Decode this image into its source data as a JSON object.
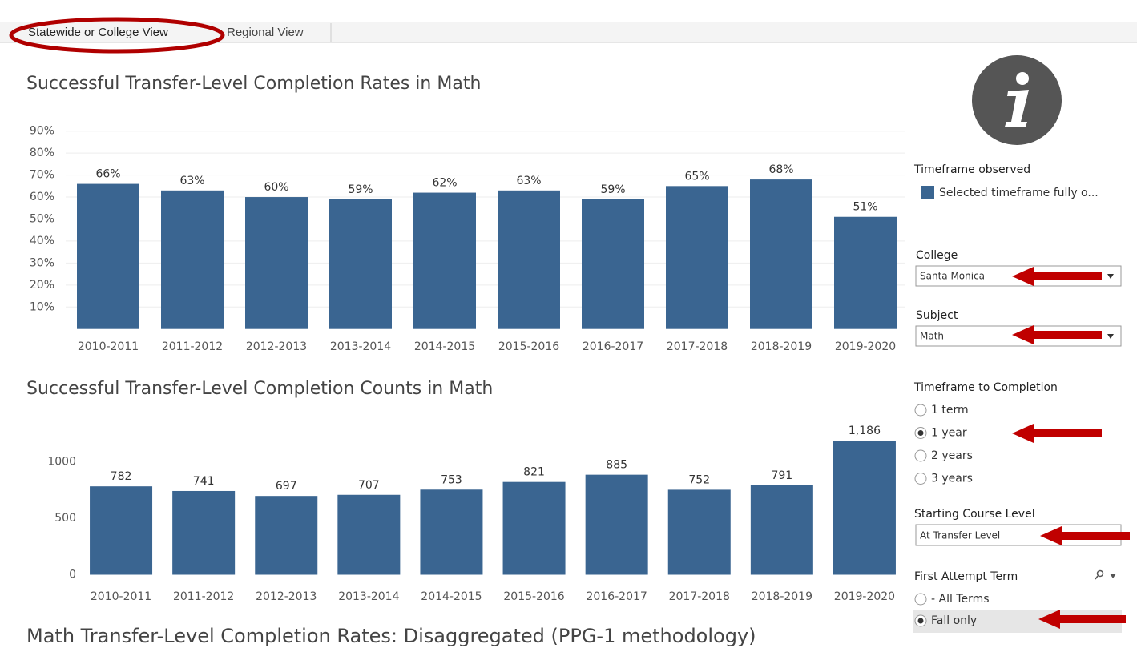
{
  "tabs": [
    "Statewide or College View",
    "Regional View"
  ],
  "chart_data": [
    {
      "type": "bar",
      "title": "Successful Transfer-Level Completion Rates in Math",
      "categories": [
        "2010-2011",
        "2011-2012",
        "2012-2013",
        "2013-2014",
        "2014-2015",
        "2015-2016",
        "2016-2017",
        "2017-2018",
        "2018-2019",
        "2019-2020"
      ],
      "values": [
        66,
        63,
        60,
        59,
        62,
        63,
        59,
        65,
        68,
        51
      ],
      "value_labels": [
        "66%",
        "63%",
        "60%",
        "59%",
        "62%",
        "63%",
        "59%",
        "65%",
        "68%",
        "51%"
      ],
      "color": "#3a6591",
      "ylim": [
        0,
        95
      ],
      "yticks": [
        {
          "value": 10,
          "label": "10%"
        },
        {
          "value": 20,
          "label": "20%"
        },
        {
          "value": 30,
          "label": "30%"
        },
        {
          "value": 40,
          "label": "40%"
        },
        {
          "value": 50,
          "label": "50%"
        },
        {
          "value": 60,
          "label": "60%"
        },
        {
          "value": 70,
          "label": "70%"
        },
        {
          "value": 80,
          "label": "80%"
        },
        {
          "value": 90,
          "label": "90%"
        }
      ],
      "grid": true
    },
    {
      "type": "bar",
      "title": "Successful Transfer-Level Completion Counts in Math",
      "categories": [
        "2010-2011",
        "2011-2012",
        "2012-2013",
        "2013-2014",
        "2014-2015",
        "2015-2016",
        "2016-2017",
        "2017-2018",
        "2018-2019",
        "2019-2020"
      ],
      "values": [
        782,
        741,
        697,
        707,
        753,
        821,
        885,
        752,
        791,
        1186
      ],
      "value_labels": [
        "782",
        "741",
        "697",
        "707",
        "753",
        "821",
        "885",
        "752",
        "791",
        "1,186"
      ],
      "color": "#3a6591",
      "ylim": [
        0,
        1400
      ],
      "yticks": [
        0,
        500,
        1000
      ],
      "grid": false
    }
  ],
  "legend": {
    "title": "Timeframe observed",
    "items": [
      {
        "label": "Selected timeframe fully o...",
        "color": "#3a6591"
      }
    ]
  },
  "filters": {
    "college": {
      "label": "College",
      "value": "Santa Monica"
    },
    "subject": {
      "label": "Subject",
      "value": "Math"
    },
    "timeframe": {
      "label": "Timeframe to Completion",
      "options": [
        "1 term",
        "1 year",
        "2 years",
        "3 years"
      ],
      "selected": 1
    },
    "starting_level": {
      "label": "Starting Course Level",
      "value": "At Transfer Level"
    },
    "first_term": {
      "label": "First Attempt Term",
      "options": [
        "- All Terms",
        "Fall only"
      ],
      "selected": 1
    }
  },
  "footer_title": "Math Transfer-Level Completion Rates: Disaggregated (PPG-1 methodology)"
}
